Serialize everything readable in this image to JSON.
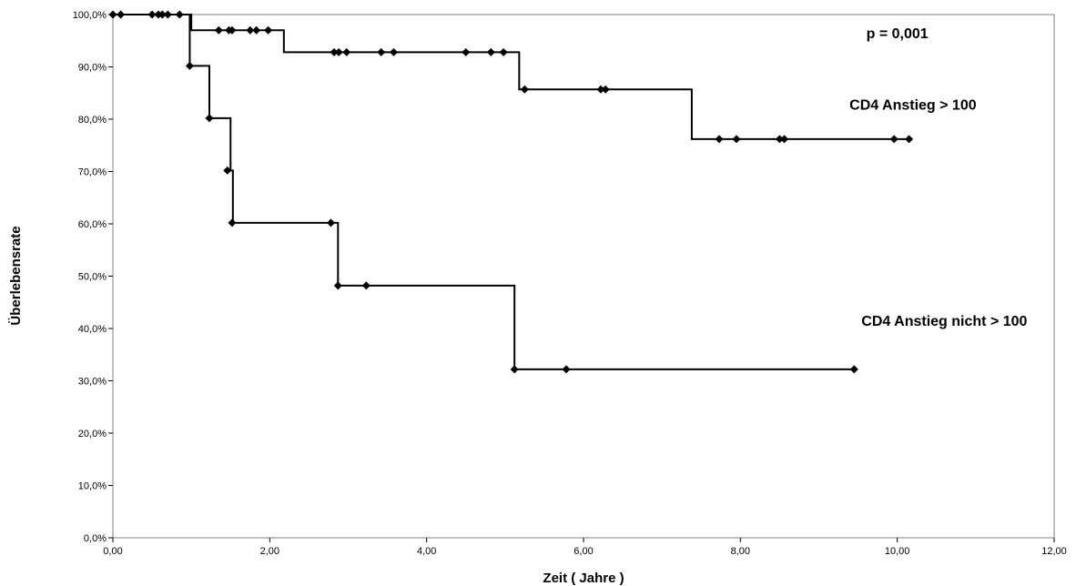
{
  "chart_data": {
    "type": "line",
    "step": true,
    "title": "",
    "xlabel": "Zeit ( Jahre )",
    "ylabel": "Überlebensrate",
    "xlim": [
      0,
      12
    ],
    "ylim": [
      0,
      100
    ],
    "x_ticks": [
      "0,00",
      "2,00",
      "4,00",
      "6,00",
      "8,00",
      "10,00",
      "12,00"
    ],
    "y_ticks": [
      "0,0%",
      "10,0%",
      "20,0%",
      "30,0%",
      "40,0%",
      "50,0%",
      "60,0%",
      "70,0%",
      "80,0%",
      "90,0%",
      "100,0%"
    ],
    "grid": false,
    "series": [
      {
        "name": "CD4 Anstieg > 100",
        "color": "#000000",
        "steps": [
          [
            0,
            100
          ],
          [
            1.0,
            97.0
          ],
          [
            2.18,
            92.8
          ],
          [
            5.18,
            85.7
          ],
          [
            7.38,
            76.2
          ]
        ],
        "end_x": 10.15,
        "censored": [
          [
            0,
            100
          ],
          [
            0.1,
            100
          ],
          [
            0.5,
            100
          ],
          [
            0.58,
            100
          ],
          [
            0.63,
            100
          ],
          [
            0.7,
            100
          ],
          [
            0.85,
            100
          ],
          [
            1.35,
            97.0
          ],
          [
            1.48,
            97.0
          ],
          [
            1.52,
            97.0
          ],
          [
            1.75,
            97.0
          ],
          [
            1.83,
            97.0
          ],
          [
            1.98,
            97.0
          ],
          [
            2.82,
            92.8
          ],
          [
            2.88,
            92.8
          ],
          [
            2.98,
            92.8
          ],
          [
            3.42,
            92.8
          ],
          [
            3.58,
            92.8
          ],
          [
            4.5,
            92.8
          ],
          [
            4.82,
            92.8
          ],
          [
            4.98,
            92.8
          ],
          [
            5.25,
            85.7
          ],
          [
            6.22,
            85.7
          ],
          [
            6.28,
            85.7
          ],
          [
            7.73,
            76.2
          ],
          [
            7.95,
            76.2
          ],
          [
            8.5,
            76.2
          ],
          [
            8.56,
            76.2
          ],
          [
            9.96,
            76.2
          ],
          [
            10.15,
            76.2
          ]
        ]
      },
      {
        "name": "CD4 Anstieg nicht > 100",
        "color": "#000000",
        "steps": [
          [
            0,
            100
          ],
          [
            0.98,
            90.2
          ],
          [
            1.23,
            80.2
          ],
          [
            1.5,
            70.2
          ],
          [
            1.53,
            60.2
          ],
          [
            2.87,
            48.2
          ],
          [
            5.12,
            32.2
          ]
        ],
        "end_x": 9.45,
        "censored": [
          [
            0.98,
            90.2
          ],
          [
            1.23,
            80.2
          ],
          [
            1.46,
            70.2
          ],
          [
            1.52,
            60.2
          ],
          [
            2.78,
            60.2
          ],
          [
            2.87,
            48.2
          ],
          [
            3.23,
            48.2
          ],
          [
            5.12,
            32.2
          ],
          [
            5.78,
            32.2
          ],
          [
            9.45,
            32.2
          ]
        ]
      }
    ],
    "annotations": [
      {
        "text": "p = 0,001",
        "x": 10.0,
        "y": 95.5
      },
      {
        "text": "CD4 Anstieg > 100",
        "x": 10.2,
        "y": 81.8
      },
      {
        "text": "CD4 Anstieg nicht > 100",
        "x": 10.6,
        "y": 40.5
      }
    ]
  }
}
